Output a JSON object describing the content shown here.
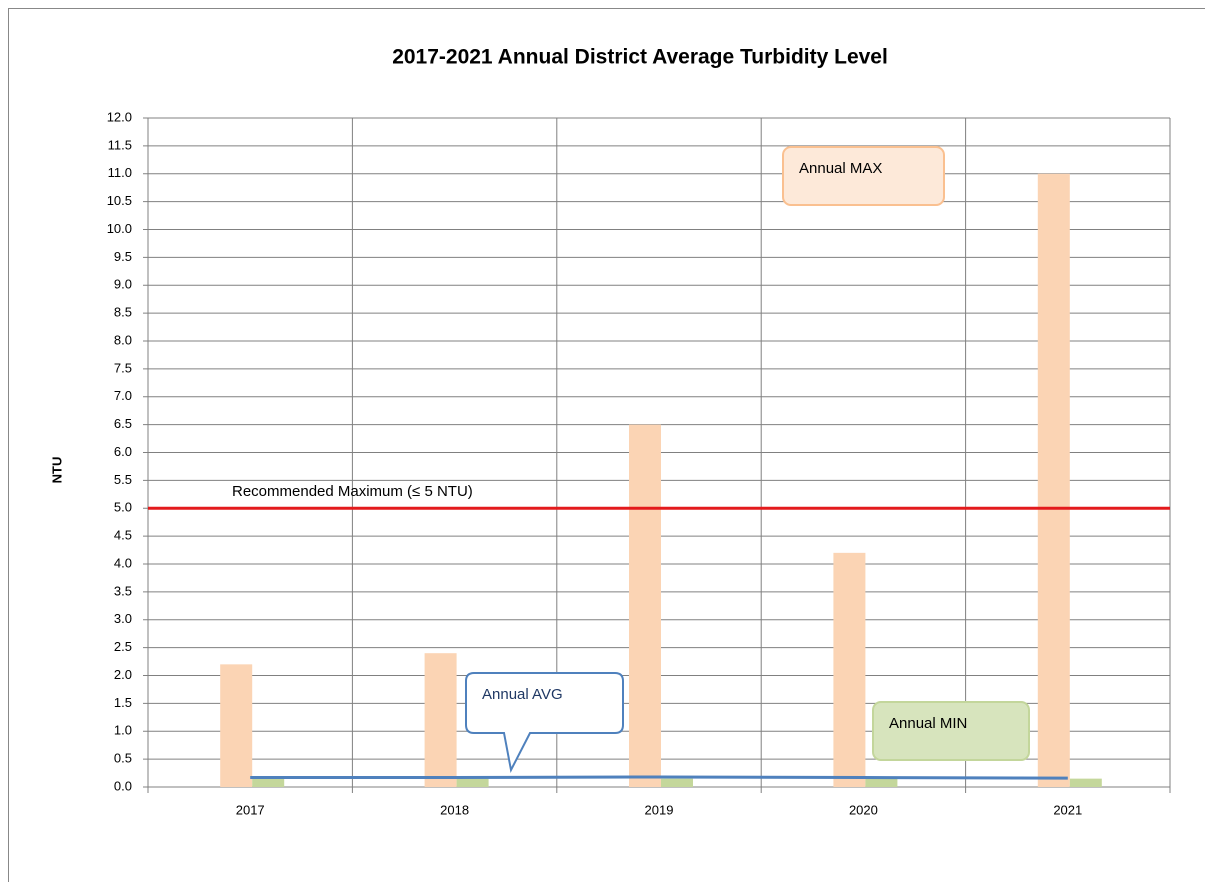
{
  "chart_data": {
    "type": "bar",
    "title": "2017-2021 Annual District Average Turbidity Level",
    "y_label": "NTU",
    "categories": [
      "2017",
      "2018",
      "2019",
      "2020",
      "2021"
    ],
    "series": [
      {
        "name": "Annual MAX",
        "type": "bar",
        "color": "#fbd4b4",
        "values": [
          2.2,
          2.4,
          6.5,
          4.2,
          11.0
        ]
      },
      {
        "name": "Annual MIN",
        "type": "bar",
        "color": "#c4d79b",
        "values": [
          0.15,
          0.15,
          0.15,
          0.15,
          0.15
        ]
      },
      {
        "name": "Annual AVG",
        "type": "line",
        "color": "#4f81bd",
        "values": [
          0.17,
          0.17,
          0.18,
          0.17,
          0.16
        ]
      }
    ],
    "reference_line": {
      "value": 5,
      "label": "Recommended Maximum  (≤ 5 NTU)",
      "color": "#e31a1c"
    },
    "ylim": [
      0,
      12
    ],
    "yticks": [
      {
        "value": 0,
        "label": "0.0"
      },
      0.5,
      {
        "value": 1,
        "label": "1.0"
      },
      1.5,
      {
        "value": 2,
        "label": "2.0"
      },
      2.5,
      {
        "value": 3,
        "label": "3.0"
      },
      3.5,
      {
        "value": 4,
        "label": "4.0"
      },
      4.5,
      {
        "value": 5,
        "label": "5.0"
      },
      5.5,
      {
        "value": 6,
        "label": "6.0"
      },
      6.5,
      {
        "value": 7,
        "label": "7.0"
      },
      7.5,
      {
        "value": 8,
        "label": "8.0"
      },
      8.5,
      {
        "value": 9,
        "label": "9.0"
      },
      9.5,
      {
        "value": 10,
        "label": "10.0"
      },
      10.5,
      {
        "value": 11,
        "label": "11.0"
      },
      11.5,
      {
        "value": 12,
        "label": "12.0"
      }
    ],
    "grid": true
  }
}
